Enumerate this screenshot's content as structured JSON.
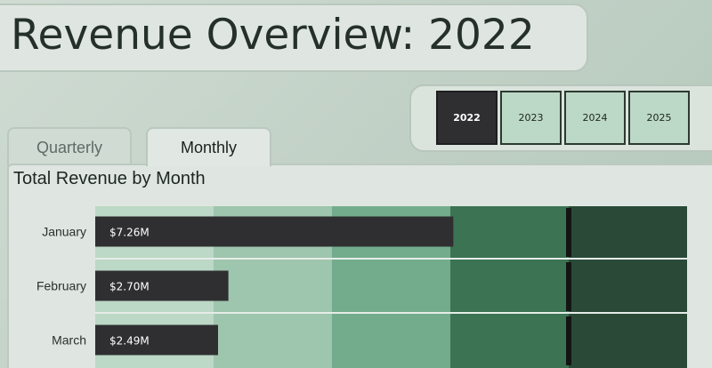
{
  "header": {
    "title": "Revenue Overview: 2022"
  },
  "years": [
    {
      "label": "2022",
      "active": true
    },
    {
      "label": "2023",
      "active": false
    },
    {
      "label": "2024",
      "active": false
    },
    {
      "label": "2025",
      "active": false
    }
  ],
  "tabs": [
    {
      "label": "Quarterly",
      "active": false
    },
    {
      "label": "Monthly",
      "active": true
    }
  ],
  "colors": {
    "band1": "#bcd8c6",
    "band2": "#9ec5ad",
    "band3": "#73ac8c",
    "band4": "#3b7353",
    "band5": "#2a4a37",
    "bar": "#2f2f31",
    "target": "#131514"
  },
  "chart_data": {
    "type": "bar",
    "title": "Total Revenue by Month",
    "categories": [
      "January",
      "February",
      "March"
    ],
    "values": [
      7.26,
      2.7,
      2.49
    ],
    "value_labels": [
      "$7.26M",
      "$2.70M",
      "$2.49M"
    ],
    "xlim": [
      0,
      12
    ],
    "bands": [
      2.4,
      4.8,
      7.2,
      9.6,
      12
    ],
    "target": 9.6
  }
}
